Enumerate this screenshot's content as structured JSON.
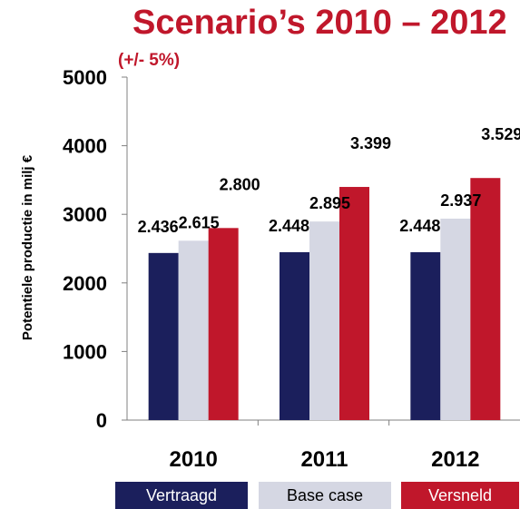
{
  "chart_data": {
    "type": "bar",
    "title": "Scenario’s 2010 – 2012",
    "subtitle": "(+/- 5%)",
    "ylabel": "Potentiele productie in milj €",
    "xlabel": "",
    "ylim": [
      0,
      5000
    ],
    "yticks": [
      "0",
      "1000",
      "2000",
      "3000",
      "4000",
      "5000"
    ],
    "categories": [
      "2010",
      "2011",
      "2012"
    ],
    "grid": false,
    "legend_position": "bottom",
    "series": [
      {
        "name": "Vertraagd",
        "color": "#1b1f5c",
        "values": [
          2436,
          2448,
          2448
        ],
        "labels": [
          "2.436",
          "2.448",
          "2.448"
        ]
      },
      {
        "name": "Base case",
        "color": "#d5d7e3",
        "values": [
          2615,
          2895,
          2937
        ],
        "labels": [
          "2.615",
          "2.895",
          "2.937"
        ]
      },
      {
        "name": "Versneld",
        "color": "#c0172b",
        "values": [
          2800,
          3399,
          3529
        ],
        "labels": [
          "2.800",
          "3.399",
          "3.529"
        ]
      }
    ]
  }
}
